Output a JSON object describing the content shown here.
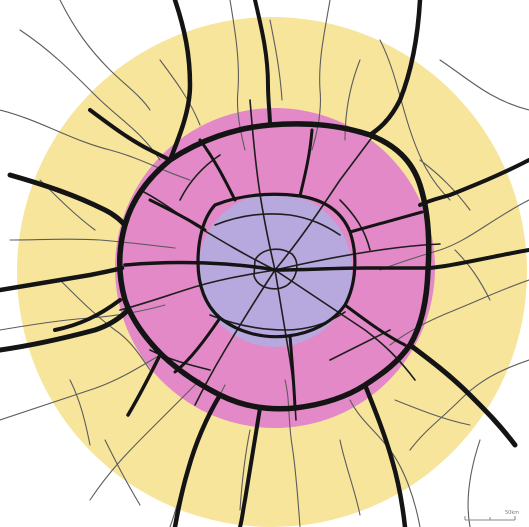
{
  "map": {
    "zones": [
      {
        "name": "outer-ring",
        "color": "#f7e59c"
      },
      {
        "name": "middle-ring",
        "color": "#e389c8"
      },
      {
        "name": "inner-core",
        "color": "#b7a8dd"
      }
    ],
    "road_color": "#141414",
    "minor_road_color": "#5c5c5c",
    "scale_bar": {
      "label": "50km"
    }
  }
}
